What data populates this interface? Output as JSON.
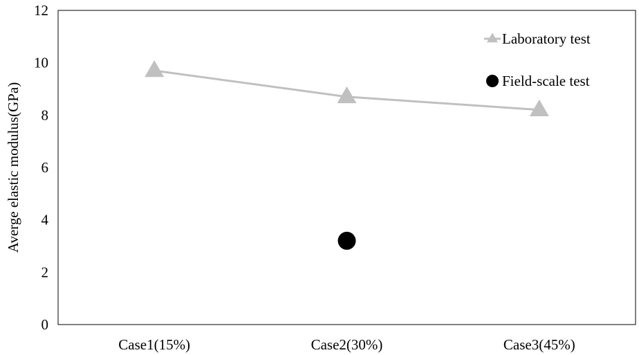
{
  "chart_data": {
    "type": "line",
    "categories": [
      "Case1(15%)",
      "Case2(30%)",
      "Case3(45%)"
    ],
    "ylabel": "Averge elastic modulus(GPa)",
    "ylim": [
      0,
      12
    ],
    "yticks": [
      0,
      2,
      4,
      6,
      8,
      10,
      12
    ],
    "grid": false,
    "legend_position": "top-right",
    "series": [
      {
        "name": "Laboratory test",
        "style": "line-with-triangle-markers",
        "color": "#c0c0c0",
        "values": [
          9.7,
          8.7,
          8.2
        ]
      },
      {
        "name": "Field-scale test",
        "style": "circle-markers",
        "color": "#000000",
        "values": [
          null,
          3.2,
          null
        ]
      }
    ]
  }
}
